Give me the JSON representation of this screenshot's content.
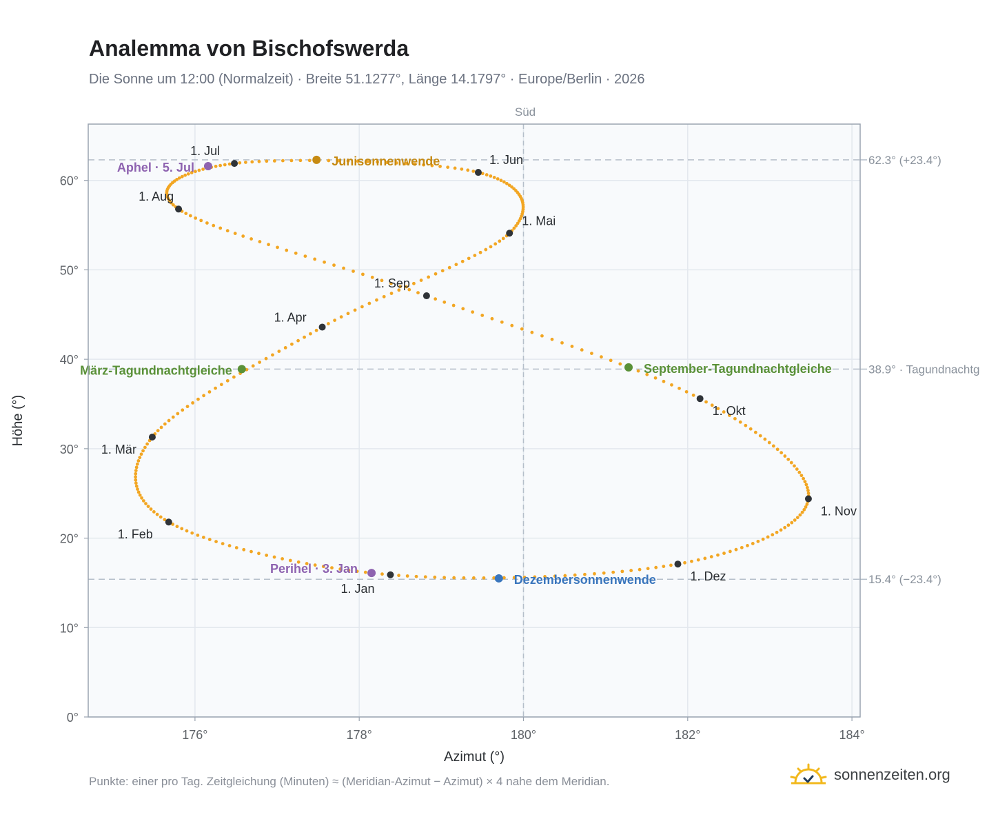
{
  "page": {
    "title": "Analemma von Bischofswerda",
    "subtitle": "Die Sonne um 12:00 (Normalzeit) · Breite 51.1277°, Länge 14.1797° · Europe/Berlin · 2026",
    "footnote": "Punkte: einer pro Tag. Zeitgleichung (Minuten) ≈ (Meridian-Azimut − Azimut) × 4 nahe dem Meridian.",
    "brand": "sonnenzeiten.org"
  },
  "colors": {
    "curve": "#f2a623",
    "month_dot": "#2f3338",
    "equinox": "#5a9138",
    "june_solstice": "#c68a12",
    "december_solstice": "#3a76bd",
    "apsis": "#8e63b0",
    "plot_bg": "#f8fafc",
    "grid": "#e3e8ee",
    "ref_line": "#b5bfca",
    "axis_text": "#5f6368"
  },
  "chart_data": {
    "type": "scatter",
    "title": "Analemma von Bischofswerda",
    "xlabel": "Azimut (°)",
    "ylabel": "Höhe (°)",
    "xlim": [
      174.7,
      184.1
    ],
    "ylim": [
      0,
      66.3
    ],
    "xticks": [
      176,
      178,
      180,
      182,
      184
    ],
    "xtick_labels": [
      "176°",
      "178°",
      "180°",
      "182°",
      "184°"
    ],
    "yticks": [
      0,
      10,
      20,
      30,
      40,
      50,
      60
    ],
    "ytick_labels": [
      "0°",
      "10°",
      "20°",
      "30°",
      "40°",
      "50°",
      "60°"
    ],
    "grid": true,
    "meridian": {
      "azimuth": 180,
      "label": "Süd"
    },
    "reference_lines": [
      {
        "altitude": 62.3,
        "label": "62.3° (+23.4°)"
      },
      {
        "altitude": 38.9,
        "label": "38.9° · Tagundnachtg"
      },
      {
        "altitude": 15.4,
        "label": "15.4° (−23.4°)"
      }
    ],
    "month_markers": [
      {
        "label": "1. Jan",
        "azimuth": 178.38,
        "altitude": 15.9
      },
      {
        "label": "1. Feb",
        "azimuth": 175.68,
        "altitude": 21.8
      },
      {
        "label": "1. Mär",
        "azimuth": 175.48,
        "altitude": 31.3
      },
      {
        "label": "1. Apr",
        "azimuth": 177.55,
        "altitude": 43.6
      },
      {
        "label": "1. Mai",
        "azimuth": 179.83,
        "altitude": 54.1
      },
      {
        "label": "1. Jun",
        "azimuth": 179.45,
        "altitude": 60.9
      },
      {
        "label": "1. Jul",
        "azimuth": 176.48,
        "altitude": 61.9
      },
      {
        "label": "1. Aug",
        "azimuth": 175.8,
        "altitude": 56.8
      },
      {
        "label": "1. Sep",
        "azimuth": 178.82,
        "altitude": 47.1
      },
      {
        "label": "1. Okt",
        "azimuth": 182.15,
        "altitude": 35.6
      },
      {
        "label": "1. Nov",
        "azimuth": 183.47,
        "altitude": 24.4
      },
      {
        "label": "1. Dez",
        "azimuth": 181.88,
        "altitude": 17.1
      }
    ],
    "events": [
      {
        "label": "März-Tagundnachtgleiche",
        "azimuth": 176.57,
        "altitude": 38.9,
        "kind": "equinox"
      },
      {
        "label": "Junisonnenwende",
        "azimuth": 177.48,
        "altitude": 62.3,
        "kind": "june_solstice"
      },
      {
        "label": "September-Tagundnachtgleiche",
        "azimuth": 181.28,
        "altitude": 39.1,
        "kind": "equinox"
      },
      {
        "label": "Dezembersonnenwende",
        "azimuth": 179.7,
        "altitude": 15.5,
        "kind": "december_solstice"
      },
      {
        "label": "Perihel · 3. Jan",
        "azimuth": 178.15,
        "altitude": 16.1,
        "kind": "apsis"
      },
      {
        "label": "Aphel · 5. Jul",
        "azimuth": 176.16,
        "altitude": 61.6,
        "kind": "apsis"
      }
    ],
    "curve": {
      "name": "",
      "points_per_year": 365,
      "knots": [
        [
          178.38,
          15.9
        ],
        [
          175.68,
          21.8
        ],
        [
          175.48,
          31.3
        ],
        [
          177.55,
          43.6
        ],
        [
          179.83,
          54.1
        ],
        [
          179.45,
          60.9
        ],
        [
          176.48,
          61.9
        ],
        [
          175.8,
          56.8
        ],
        [
          178.82,
          47.1
        ],
        [
          182.15,
          35.6
        ],
        [
          183.47,
          24.4
        ],
        [
          181.88,
          17.1
        ]
      ]
    }
  }
}
